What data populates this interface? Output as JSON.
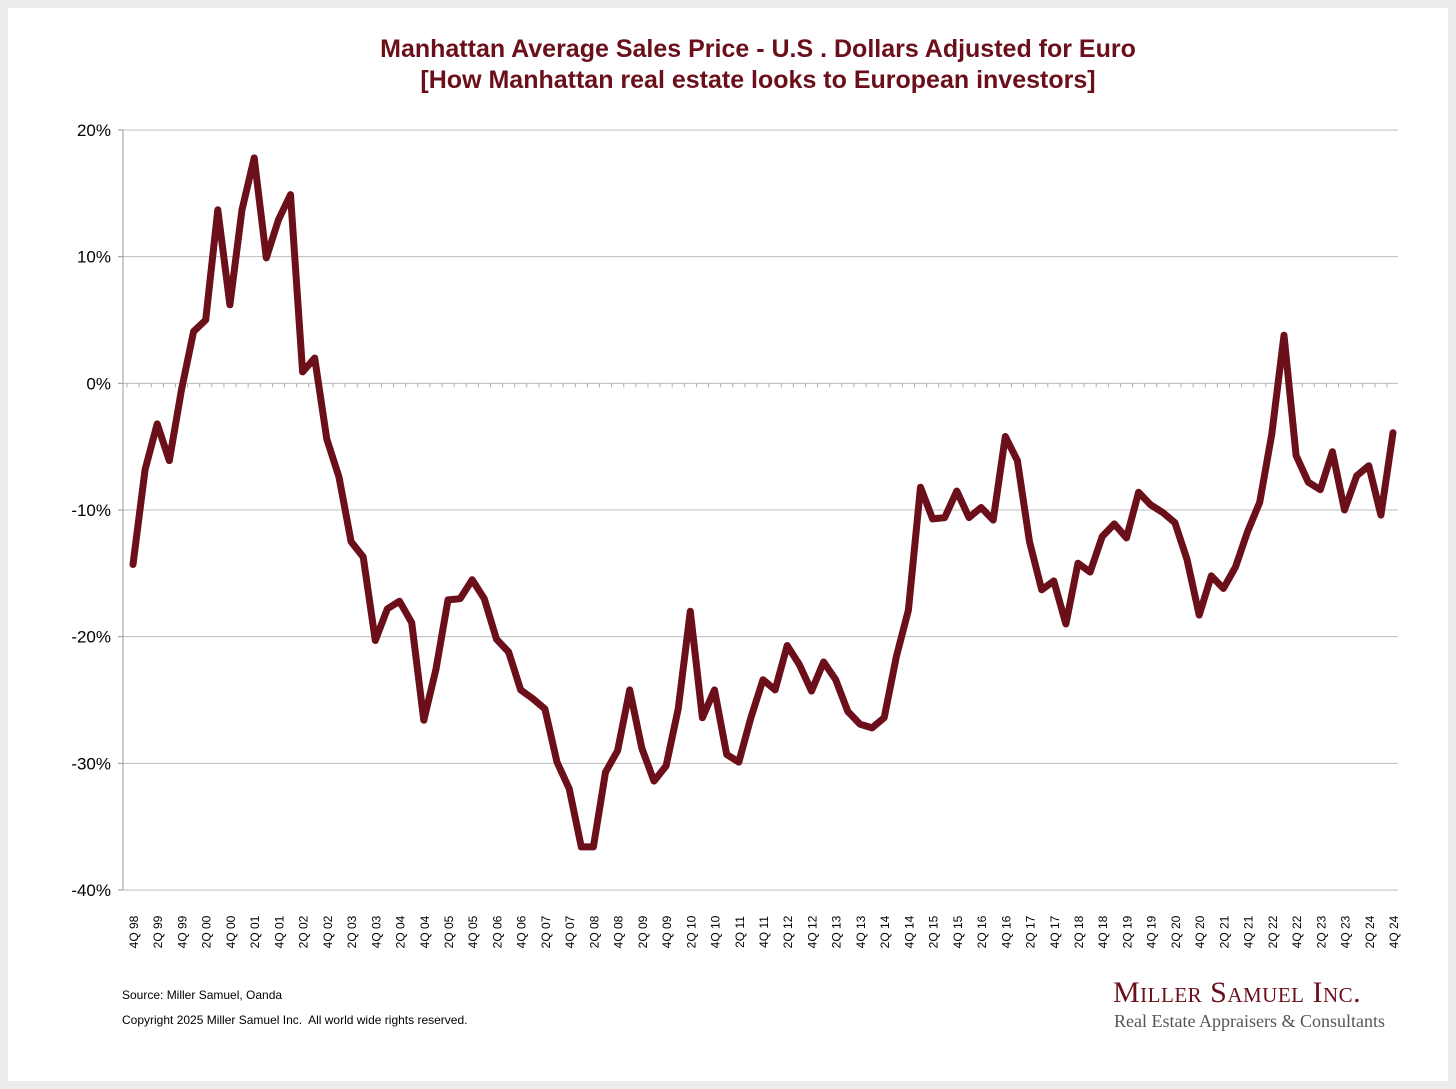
{
  "chart_data": {
    "type": "line",
    "title": "Manhattan Average Sales Price - U.S . Dollars Adjusted for Euro",
    "subtitle": "[How Manhattan real estate looks to European investors]",
    "xlabel": "",
    "ylabel": "",
    "ylim": [
      -40,
      20
    ],
    "y_ticks": [
      20,
      10,
      0,
      -10,
      -20,
      -30,
      -40
    ],
    "y_tick_labels": [
      "20%",
      "10%",
      "0%",
      "-10%",
      "-20%",
      "-30%",
      "-40%"
    ],
    "grid": true,
    "x_frequency": "quarterly, 4Q 98 to 4Q 24",
    "x_tick_labels": [
      "4Q 98",
      "2Q 99",
      "4Q 99",
      "2Q 00",
      "4Q 00",
      "2Q 01",
      "4Q 01",
      "2Q 02",
      "4Q 02",
      "2Q 03",
      "4Q 03",
      "2Q 04",
      "4Q 04",
      "2Q 05",
      "4Q 05",
      "2Q 06",
      "4Q 06",
      "2Q 07",
      "4Q 07",
      "2Q 08",
      "4Q 08",
      "2Q 09",
      "4Q 09",
      "2Q 10",
      "4Q 10",
      "2Q 11",
      "4Q 11",
      "2Q 12",
      "4Q 12",
      "2Q 13",
      "4Q 13",
      "2Q 14",
      "4Q 14",
      "2Q 15",
      "4Q 15",
      "2Q 16",
      "4Q 16",
      "2Q 17",
      "4Q 17",
      "2Q 18",
      "4Q 18",
      "2Q 19",
      "4Q 19",
      "2Q 20",
      "4Q 20",
      "2Q 21",
      "4Q 21",
      "2Q 22",
      "4Q 22",
      "2Q 23",
      "4Q 23",
      "2Q 24",
      "4Q 24"
    ],
    "series": [
      {
        "name": "USD price adjusted for Euro",
        "color": "#6b0f1a",
        "values": [
          -14.3,
          -6.8,
          -3.2,
          -6.1,
          -0.5,
          4.1,
          5.0,
          13.7,
          6.2,
          13.7,
          17.8,
          9.9,
          12.9,
          14.9,
          0.9,
          2.0,
          -4.4,
          -7.4,
          -12.5,
          -13.7,
          -20.3,
          -17.8,
          -17.2,
          -18.9,
          -26.6,
          -22.6,
          -17.1,
          -17.0,
          -15.5,
          -17.0,
          -20.2,
          -21.2,
          -24.2,
          -24.9,
          -25.7,
          -29.9,
          -32.0,
          -36.6,
          -36.6,
          -30.7,
          -29.0,
          -24.2,
          -28.8,
          -31.4,
          -30.2,
          -25.7,
          -18.0,
          -26.4,
          -24.2,
          -29.3,
          -29.9,
          -26.4,
          -23.4,
          -24.2,
          -20.7,
          -22.2,
          -24.3,
          -22.0,
          -23.4,
          -25.9,
          -26.9,
          -27.2,
          -26.4,
          -21.6,
          -17.9,
          -8.2,
          -10.7,
          -10.6,
          -8.5,
          -10.6,
          -9.8,
          -10.8,
          -4.2,
          -6.1,
          -12.5,
          -16.3,
          -15.6,
          -19.0,
          -14.2,
          -14.9,
          -12.1,
          -11.1,
          -12.2,
          -8.6,
          -9.6,
          -10.2,
          -11.0,
          -13.9,
          -18.3,
          -15.2,
          -16.2,
          -14.5,
          -11.7,
          -9.4,
          -4.0,
          3.8,
          -5.7,
          -7.8,
          -8.4,
          -5.4,
          -10.0,
          -7.3,
          -6.5,
          -10.4,
          -3.9
        ]
      }
    ]
  },
  "footer": {
    "source": "Source: Miller Samuel, Oanda",
    "copyright": "Copyright 2025 Miller Samuel Inc.  All world wide rights reserved."
  },
  "logo": {
    "name": "Miller Samuel Inc.",
    "tagline": "Real Estate Appraisers & Consultants"
  }
}
